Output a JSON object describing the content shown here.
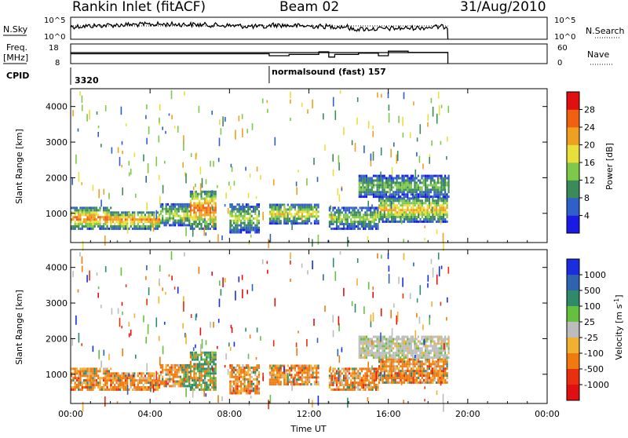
{
  "header": {
    "station": "Rankin Inlet (fitACF)",
    "beam": "Beam 02",
    "date": "31/Aug/2010"
  },
  "noise_panel": {
    "left_label": "N.Sky",
    "right_label": "N.Search",
    "left_ticks": [
      "10^5",
      "10^0"
    ],
    "right_ticks": [
      "10^5",
      "10^0"
    ]
  },
  "freq_panel": {
    "left_label_1": "Freq.",
    "left_label_2": "[MHz]",
    "right_label": "Nave",
    "left_ticks": [
      "18",
      "8"
    ],
    "right_ticks": [
      "60",
      "0"
    ]
  },
  "cpid": {
    "label": "CPID",
    "first": "3320",
    "second": "normalsound (fast) 157"
  },
  "axes": {
    "ylabel": "Slant Range [km]",
    "xlabel": "Time UT",
    "y_ticks": [
      "1000",
      "2000",
      "3000",
      "4000"
    ],
    "x_ticks": [
      "00:00",
      "04:00",
      "08:00",
      "12:00",
      "16:00",
      "20:00",
      "00:00"
    ]
  },
  "power_scale": {
    "label": "Power [dB]",
    "ticks": [
      "4",
      "8",
      "12",
      "16",
      "20",
      "24",
      "28"
    ],
    "colors": [
      "#1a1ae6",
      "#2f5fc8",
      "#3b8a5a",
      "#7ec84a",
      "#e8e03a",
      "#f0a020",
      "#f06010",
      "#e01010"
    ]
  },
  "velocity_scale": {
    "label": "Velocity [m s",
    "label_sup": "-1",
    "label_end": "]",
    "ticks": [
      "1000",
      "500",
      "100",
      "25",
      "-25",
      "-100",
      "-500",
      "-1000"
    ],
    "colors": [
      "#1a2ee0",
      "#2f62b0",
      "#2f8a6a",
      "#66c040",
      "#bcbcbc",
      "#f0b030",
      "#f07a10",
      "#e83010",
      "#e01010"
    ]
  },
  "chart_data": {
    "type": "heatmap",
    "title": "Rankin Inlet (fitACF)",
    "x_range_hours": [
      0,
      24
    ],
    "y_range_km": [
      180,
      4500
    ],
    "xlabel": "Time UT",
    "ylabel": "Slant Range [km]",
    "data_end_hour": 19,
    "cpid_change_hour": 10,
    "power_echo_bands": [
      {
        "t0": 0.0,
        "t1": 2.0,
        "r0": 600,
        "r1": 1200,
        "peak": 26
      },
      {
        "t0": 2.0,
        "t1": 4.5,
        "r0": 600,
        "r1": 1100,
        "peak": 24
      },
      {
        "t0": 4.5,
        "t1": 6.0,
        "r0": 700,
        "r1": 1300,
        "peak": 18
      },
      {
        "t0": 6.0,
        "t1": 7.3,
        "r0": 600,
        "r1": 1700,
        "peak": 26
      },
      {
        "t0": 8.0,
        "t1": 9.5,
        "r0": 500,
        "r1": 1300,
        "peak": 16
      },
      {
        "t0": 10.0,
        "t1": 12.5,
        "r0": 750,
        "r1": 1300,
        "peak": 20
      },
      {
        "t0": 13.0,
        "t1": 15.5,
        "r0": 600,
        "r1": 1200,
        "peak": 16
      },
      {
        "t0": 15.5,
        "t1": 19.0,
        "r0": 800,
        "r1": 1500,
        "peak": 22
      },
      {
        "t0": 14.5,
        "t1": 19.0,
        "r0": 1500,
        "r1": 2100,
        "peak": 14
      }
    ],
    "nave_steps": [
      {
        "t0": 0,
        "t1": 10,
        "value": 30
      },
      {
        "t0": 10,
        "t1": 11,
        "value": 24
      },
      {
        "t0": 11,
        "t1": 12.5,
        "value": 28
      },
      {
        "t0": 12.5,
        "t1": 13,
        "value": 36
      },
      {
        "t0": 13,
        "t1": 13.3,
        "value": 20
      },
      {
        "t0": 13.3,
        "t1": 14.5,
        "value": 28
      },
      {
        "t0": 14.5,
        "t1": 15.5,
        "value": 32
      },
      {
        "t0": 15.5,
        "t1": 16.0,
        "value": 24
      },
      {
        "t0": 16.0,
        "t1": 17.0,
        "value": 38
      },
      {
        "t0": 17.0,
        "t1": 19.0,
        "value": 34
      }
    ]
  }
}
